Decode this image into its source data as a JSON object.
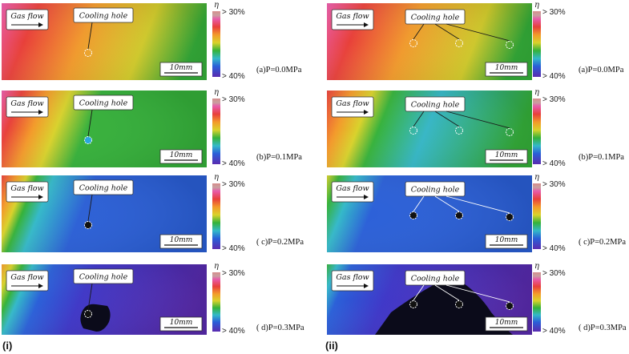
{
  "labels": {
    "gas_flow": "Gas flow",
    "cooling_hole": "Cooling hole",
    "scale": "10mm",
    "eta": "η",
    "cbar_top": "> 30%",
    "cbar_bottom": "> 40%"
  },
  "groups": [
    {
      "label": "(i)",
      "panels": [
        {
          "caption": "(a)P=0.0MPa"
        },
        {
          "caption": "(b)P=0.1MPa"
        },
        {
          "caption": "( c)P=0.2MPa"
        },
        {
          "caption": "( d)P=0.3MPa"
        }
      ]
    },
    {
      "label": "(ii)",
      "panels": [
        {
          "caption": "(a)P=0.0MPa"
        },
        {
          "caption": "(b)P=0.1MPa"
        },
        {
          "caption": "( c)P=0.2MPa"
        },
        {
          "caption": "( d)P=0.3MPa"
        }
      ]
    }
  ],
  "colors": {
    "magenta": "#e85aa8",
    "red": "#e8403a",
    "orange": "#f39a2a",
    "yellow": "#d9d22b",
    "green": "#35b23a",
    "cyan": "#34b9c9",
    "blue": "#2a5fd8",
    "indigo": "#3d35c8",
    "purple": "#5a2bb0"
  }
}
